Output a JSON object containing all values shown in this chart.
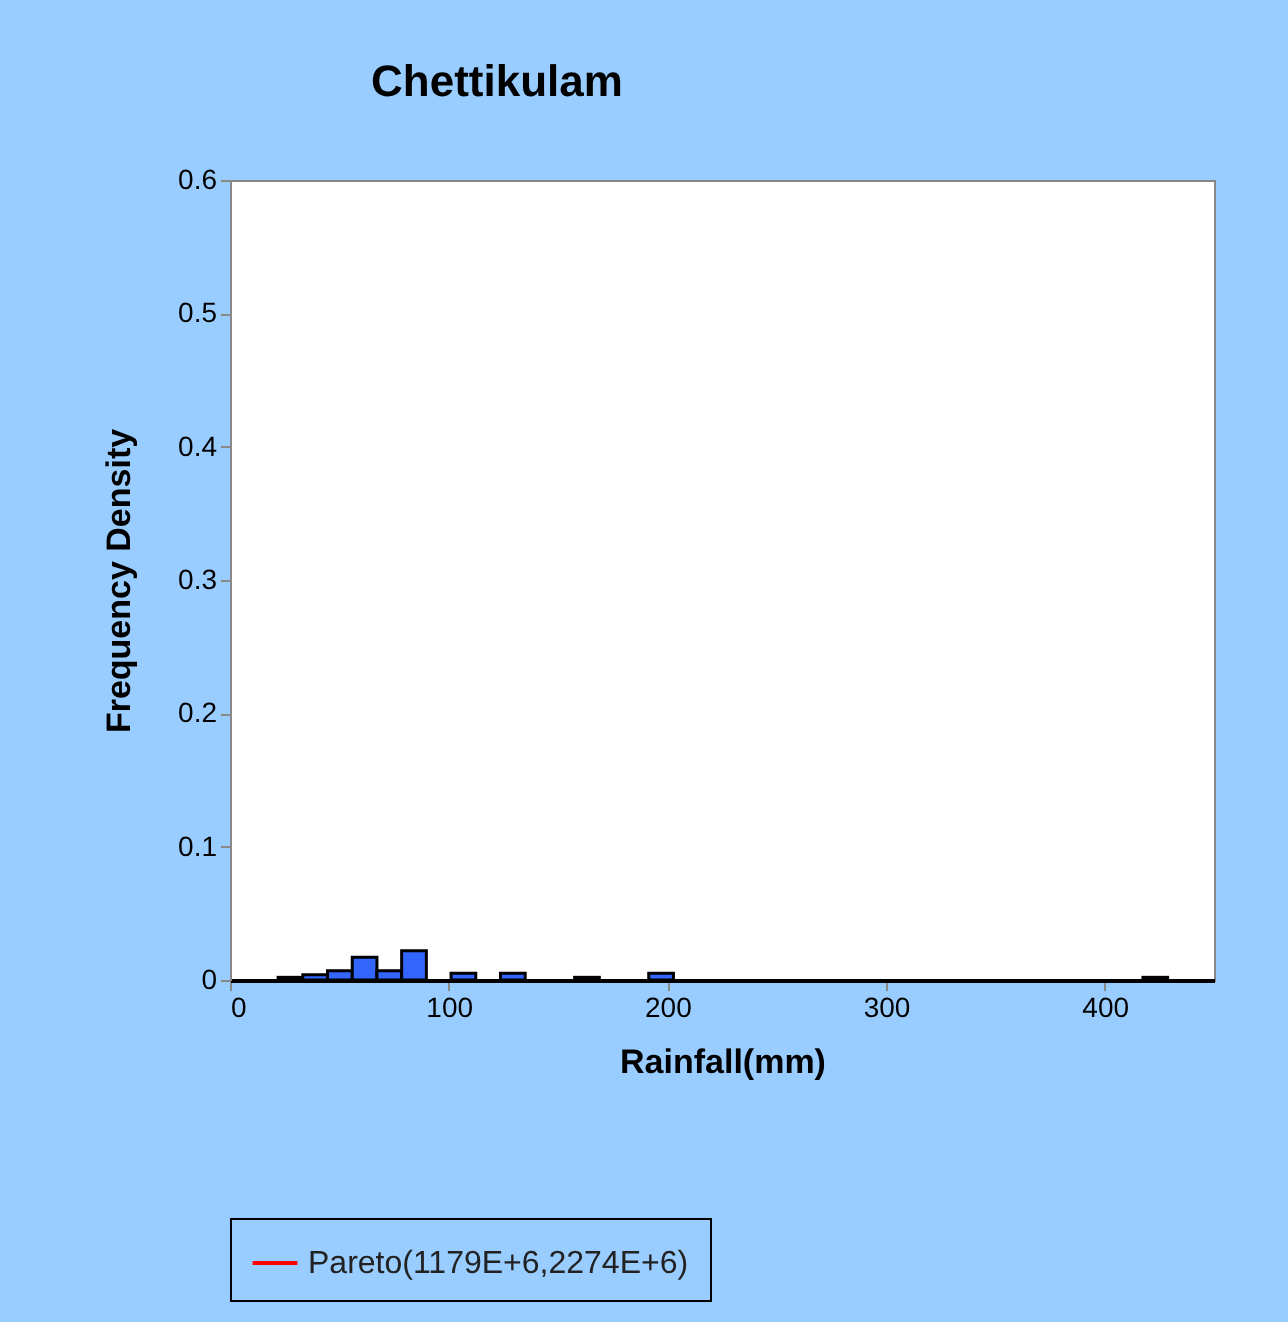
{
  "chart_data": {
    "type": "histogram",
    "title": "Chettikulam",
    "xlabel": "Rainfall(mm)",
    "ylabel": "Frequency Density",
    "bins": [
      22,
      33.3,
      44.6,
      55.9,
      67.2,
      78.5,
      89.8,
      101.1,
      112.4,
      123.7,
      135,
      146.3,
      157.6,
      168.9,
      180.2,
      191.5,
      202.8,
      214.1,
      225.4,
      236.7,
      248,
      259.3,
      270.6,
      281.9,
      293.2,
      304.5,
      315.8,
      327.1,
      338.4,
      349.7,
      361,
      372.3,
      383.6,
      394.9,
      406.2,
      417.5,
      428.8
    ],
    "series": [
      {
        "color": "#3366ff",
        "values": [
          0.002,
          0.004,
          0.007,
          0.017,
          0.007,
          0.022,
          0,
          0.005,
          0,
          0.005,
          0,
          0,
          0.002,
          0,
          0,
          0.005,
          0,
          0,
          0,
          0,
          0,
          0,
          0,
          0,
          0,
          0,
          0,
          0,
          0,
          0,
          0,
          0,
          0,
          0,
          0,
          0.002
        ]
      },
      {
        "type": "line",
        "name": "Pareto(1179E+6,2274E+6)",
        "color": "#ff0000"
      }
    ],
    "xlim": [
      0,
      450
    ],
    "xticks": [
      0,
      100,
      200,
      300,
      400
    ],
    "ylim": [
      0,
      0.6
    ],
    "yticks": [
      0,
      0.1,
      0.2,
      0.3,
      0.4,
      0.5,
      0.6
    ],
    "grid": false,
    "legend": "bottom"
  }
}
